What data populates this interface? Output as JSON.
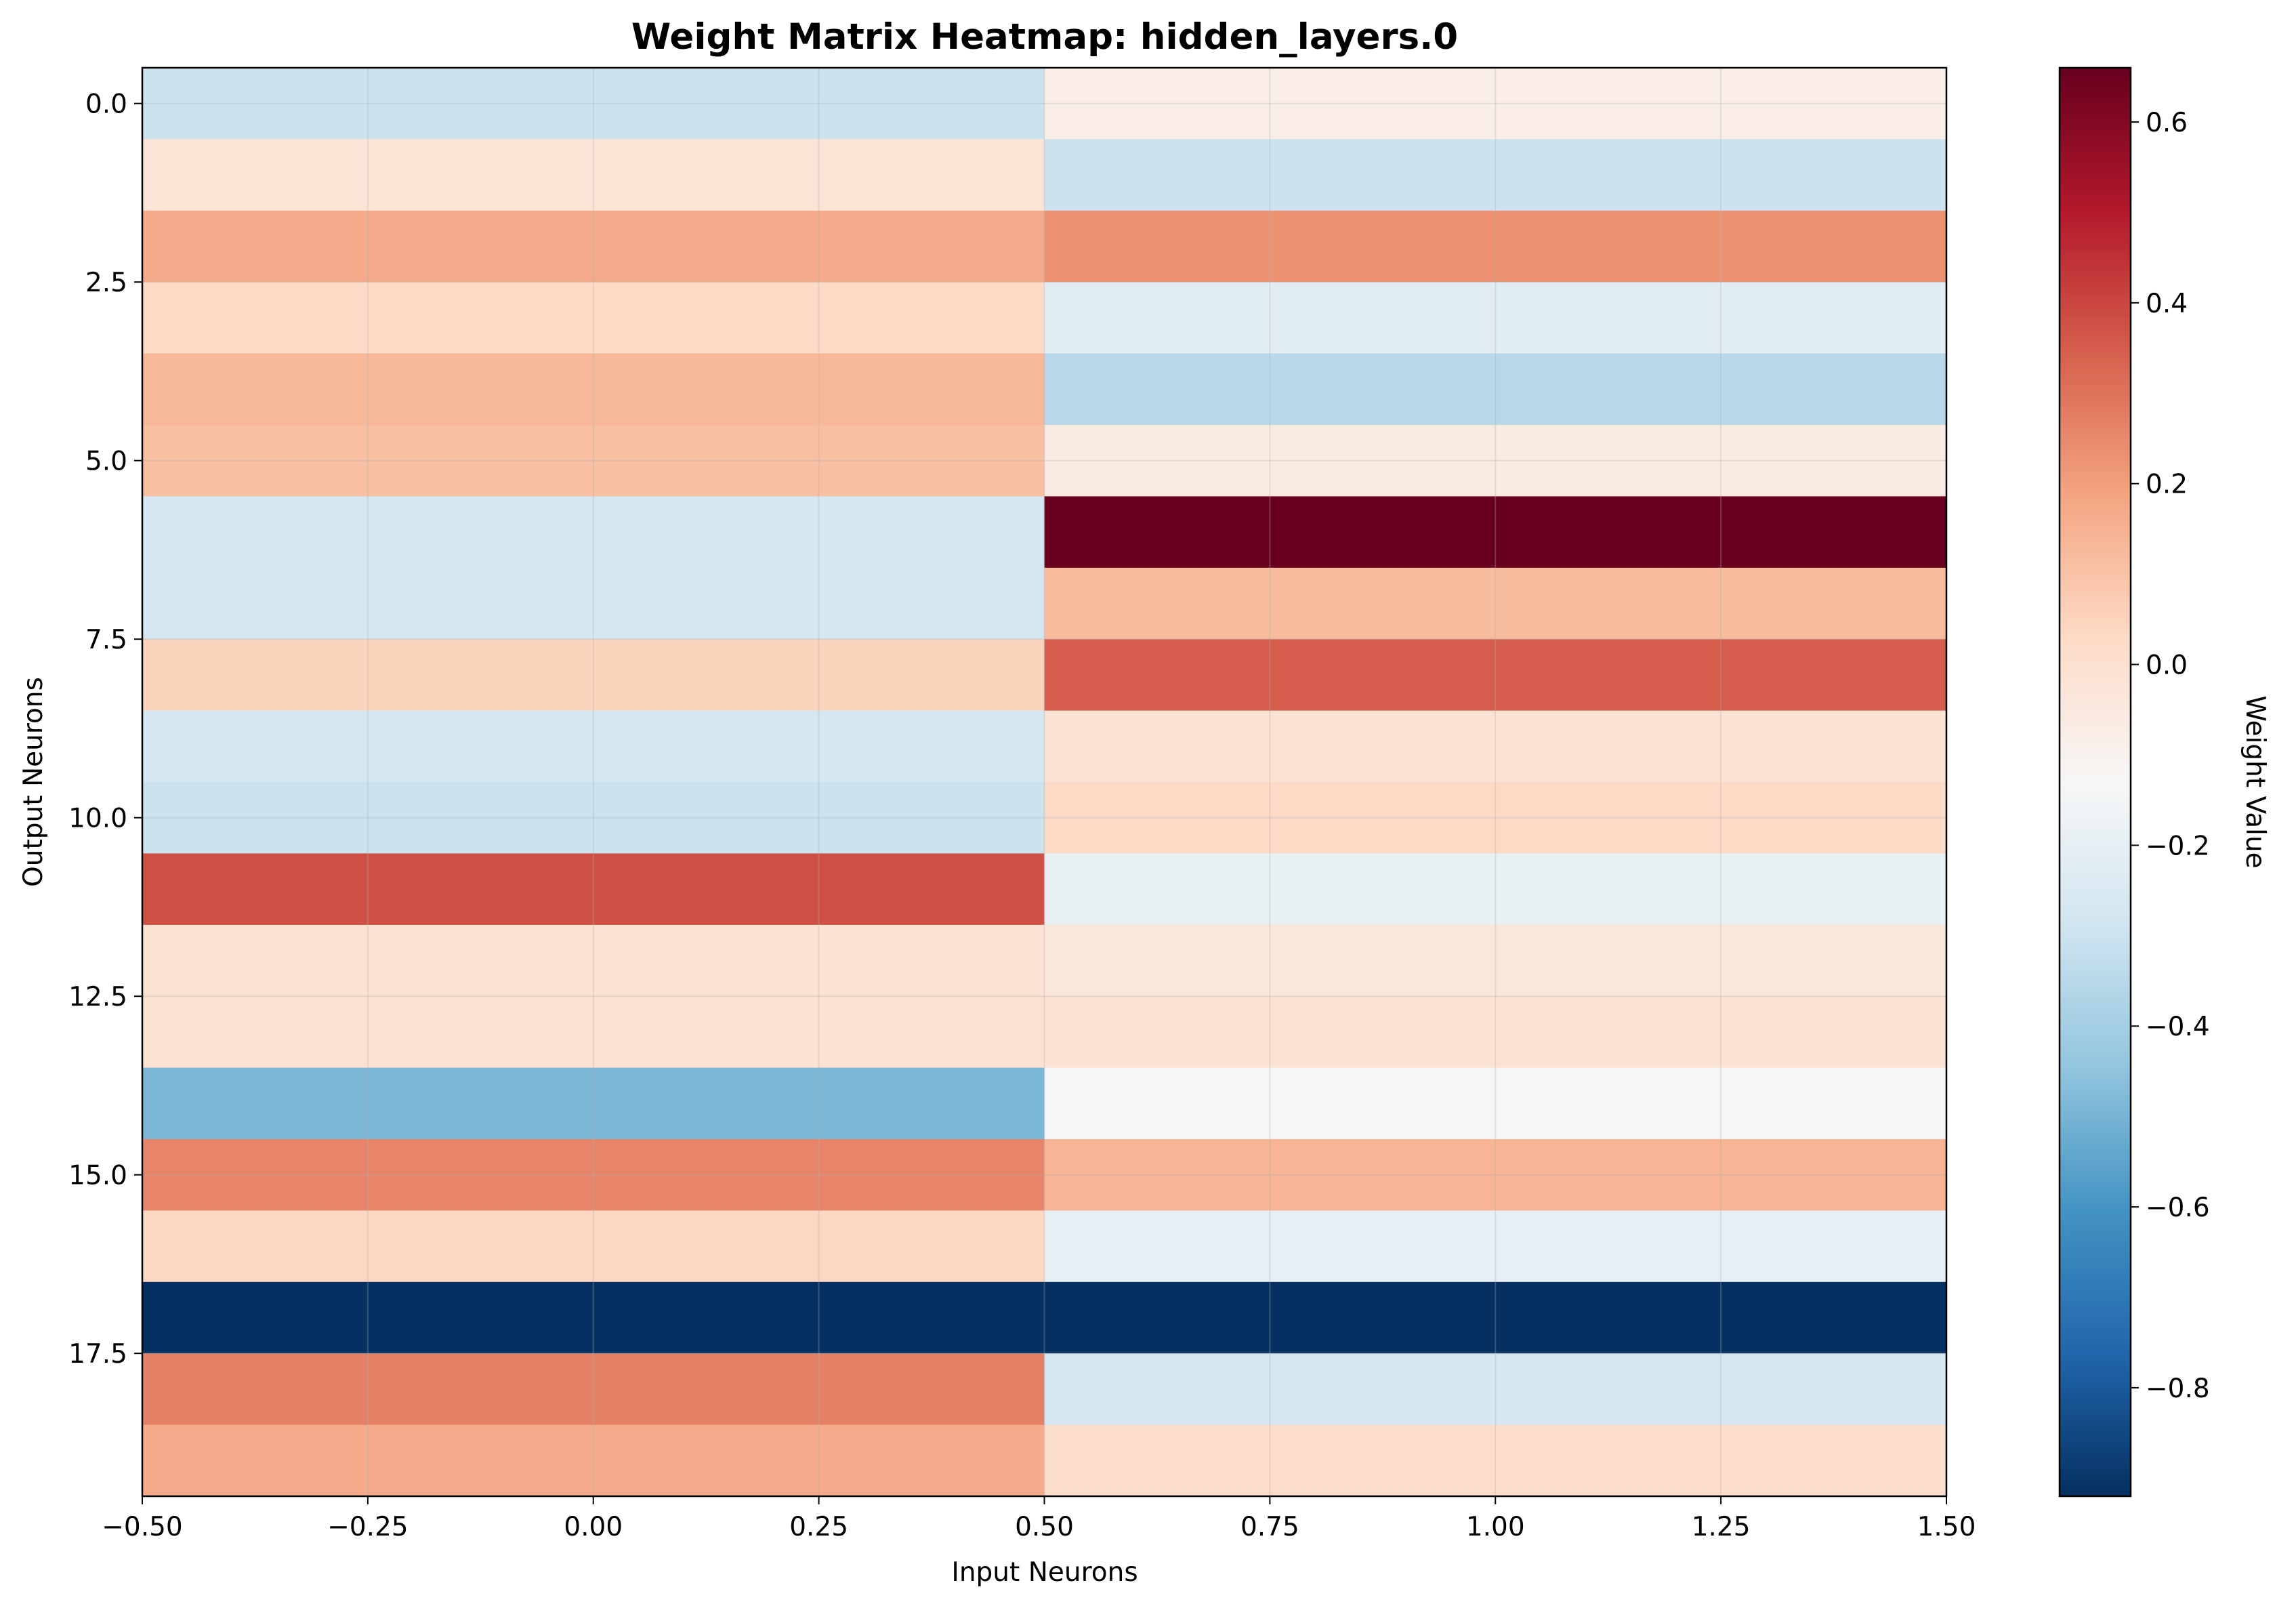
{
  "chart_data": {
    "type": "heatmap",
    "title": "Weight Matrix Heatmap: hidden_layers.0",
    "xlabel": "Input Neurons",
    "ylabel": "Output Neurons",
    "colorbar_label": "Weight Value",
    "colormap": "RdBu_r",
    "x_columns": [
      0,
      1
    ],
    "y_rows": [
      0,
      1,
      2,
      3,
      4,
      5,
      6,
      7,
      8,
      9,
      10,
      11,
      12,
      13,
      14,
      15,
      16,
      17,
      18,
      19
    ],
    "values": [
      [
        -0.3,
        -0.08
      ],
      [
        -0.02,
        -0.3
      ],
      [
        0.17,
        0.23
      ],
      [
        0.03,
        -0.22
      ],
      [
        0.13,
        -0.35
      ],
      [
        0.11,
        -0.06
      ],
      [
        -0.27,
        0.66
      ],
      [
        -0.27,
        0.12
      ],
      [
        0.05,
        0.35
      ],
      [
        -0.27,
        -0.01
      ],
      [
        -0.3,
        0.03
      ],
      [
        0.38,
        -0.19
      ],
      [
        -0.01,
        -0.04
      ],
      [
        -0.01,
        -0.01
      ],
      [
        -0.49,
        -0.14
      ],
      [
        0.26,
        0.14
      ],
      [
        0.04,
        -0.2
      ],
      [
        -0.92,
        -0.92
      ],
      [
        0.27,
        -0.27
      ],
      [
        0.17,
        0.01
      ]
    ],
    "xlim": [
      -0.5,
      1.5
    ],
    "ylim": [
      19.5,
      -0.5
    ],
    "vmin": -0.92,
    "vmax": 0.66,
    "grid": true,
    "x_ticks": [
      -0.5,
      -0.25,
      0.0,
      0.25,
      0.5,
      0.75,
      1.0,
      1.25,
      1.5
    ],
    "x_tick_labels": [
      "−0.50",
      "−0.25",
      "0.00",
      "0.25",
      "0.50",
      "0.75",
      "1.00",
      "1.25",
      "1.50"
    ],
    "y_ticks": [
      0.0,
      2.5,
      5.0,
      7.5,
      10.0,
      12.5,
      15.0,
      17.5
    ],
    "y_tick_labels": [
      "0.0",
      "2.5",
      "5.0",
      "7.5",
      "10.0",
      "12.5",
      "15.0",
      "17.5"
    ],
    "colorbar_ticks": [
      0.6,
      0.4,
      0.2,
      0.0,
      -0.2,
      -0.4,
      -0.6,
      -0.8
    ],
    "colorbar_tick_labels": [
      "0.6",
      "0.4",
      "0.2",
      "0.0",
      "−0.2",
      "−0.4",
      "−0.6",
      "−0.8"
    ],
    "colors": {
      "dark_red": "#67001f",
      "red": "#b2182b",
      "salmon": "#d6604d",
      "light_salmon": "#f4a582",
      "peach": "#fddbc7",
      "white": "#f7f7f7",
      "pale_blue": "#d1e5f0",
      "light_blue": "#92c5de",
      "blue": "#4393c3",
      "mid_blue": "#2166ac",
      "dark_blue": "#053061"
    }
  }
}
